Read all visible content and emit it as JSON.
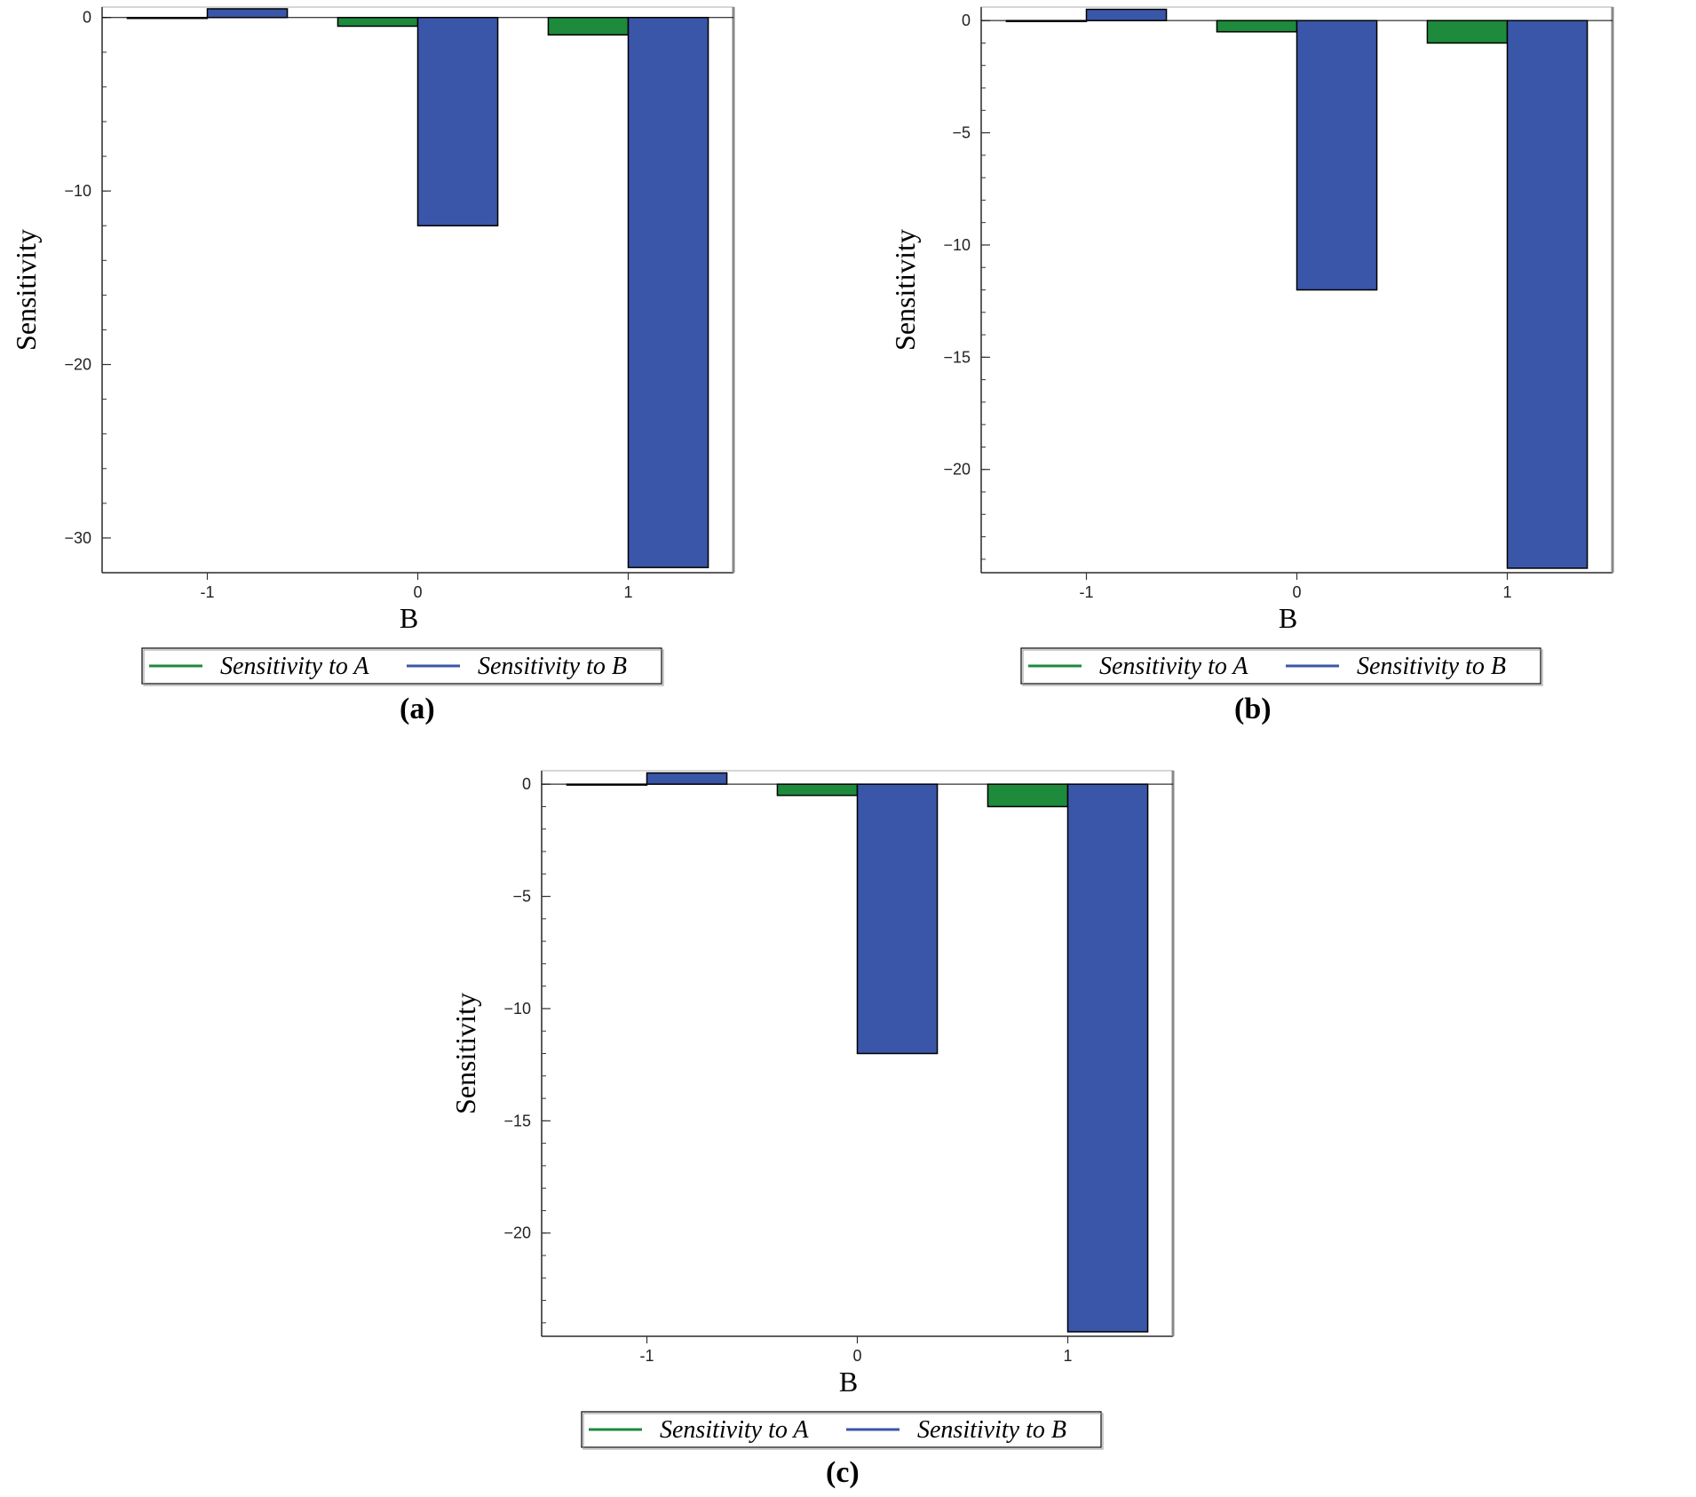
{
  "chart_data": [
    {
      "type": "bar",
      "caption": "(a)",
      "categories": [
        "-1",
        "0",
        "1"
      ],
      "series": [
        {
          "name": "Sensitivity to A",
          "values": [
            0,
            -0.5,
            -1
          ]
        },
        {
          "name": "Sensitivity to B",
          "values": [
            0.5,
            -12,
            -31.7
          ]
        }
      ],
      "xlabel": "B",
      "ylabel": "Sensitivity",
      "ylim": [
        -32,
        0.6
      ],
      "yticks": [
        0,
        -10,
        -20,
        -30
      ],
      "ytick_labels": [
        "0",
        "−10",
        "−20",
        "−30"
      ],
      "grid": false,
      "legend": "bottom"
    },
    {
      "type": "bar",
      "caption": "(b)",
      "categories": [
        "-1",
        "0",
        "1"
      ],
      "series": [
        {
          "name": "Sensitivity to A",
          "values": [
            0,
            -0.5,
            -1
          ]
        },
        {
          "name": "Sensitivity to B",
          "values": [
            0.5,
            -12,
            -24.4
          ]
        }
      ],
      "xlabel": "B",
      "ylabel": "Sensitivity",
      "ylim": [
        -24.6,
        0.6
      ],
      "yticks": [
        0,
        -5,
        -10,
        -15,
        -20
      ],
      "ytick_labels": [
        "0",
        "−5",
        "−10",
        "−15",
        "−20"
      ],
      "grid": false,
      "legend": "bottom"
    },
    {
      "type": "bar",
      "caption": "(c)",
      "categories": [
        "-1",
        "0",
        "1"
      ],
      "series": [
        {
          "name": "Sensitivity to A",
          "values": [
            0,
            -0.5,
            -1
          ]
        },
        {
          "name": "Sensitivity to B",
          "values": [
            0.5,
            -12,
            -24.4
          ]
        }
      ],
      "xlabel": "B",
      "ylabel": "Sensitivity",
      "ylim": [
        -24.6,
        0.6
      ],
      "yticks": [
        0,
        -5,
        -10,
        -15,
        -20
      ],
      "ytick_labels": [
        "0",
        "−5",
        "−10",
        "−15",
        "−20"
      ],
      "grid": false,
      "legend": "bottom"
    }
  ],
  "colors": {
    "series_a": "#1e8a3c",
    "series_b": "#3a56a8",
    "axis": "#333333"
  }
}
